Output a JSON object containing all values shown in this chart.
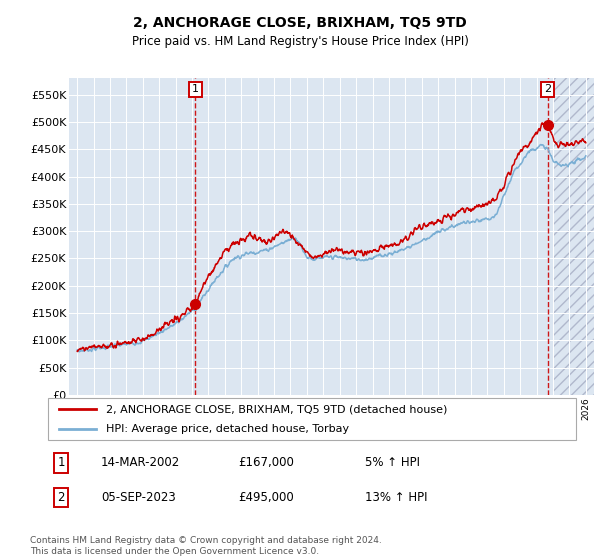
{
  "title": "2, ANCHORAGE CLOSE, BRIXHAM, TQ5 9TD",
  "subtitle": "Price paid vs. HM Land Registry's House Price Index (HPI)",
  "legend_line1": "2, ANCHORAGE CLOSE, BRIXHAM, TQ5 9TD (detached house)",
  "legend_line2": "HPI: Average price, detached house, Torbay",
  "annotation1_date": "14-MAR-2002",
  "annotation1_price": "£167,000",
  "annotation1_hpi": "5% ↑ HPI",
  "annotation2_date": "05-SEP-2023",
  "annotation2_price": "£495,000",
  "annotation2_hpi": "13% ↑ HPI",
  "footer": "Contains HM Land Registry data © Crown copyright and database right 2024.\nThis data is licensed under the Open Government Licence v3.0.",
  "red_color": "#cc0000",
  "blue_color": "#7bafd4",
  "hatch_color": "#b0b8cc",
  "bg_color": "#dce6f1",
  "grid_color": "#ffffff",
  "ylim": [
    0,
    580000
  ],
  "yticks": [
    0,
    50000,
    100000,
    150000,
    200000,
    250000,
    300000,
    350000,
    400000,
    450000,
    500000,
    550000
  ],
  "ytick_labels": [
    "£0",
    "£50K",
    "£100K",
    "£150K",
    "£200K",
    "£250K",
    "£300K",
    "£350K",
    "£400K",
    "£450K",
    "£500K",
    "£550K"
  ],
  "sale1_year": 2002.2,
  "sale1_price": 167000,
  "sale2_year": 2023.67,
  "sale2_price": 495000,
  "xmin": 1994.5,
  "xmax": 2026.5,
  "future_start": 2024.0
}
